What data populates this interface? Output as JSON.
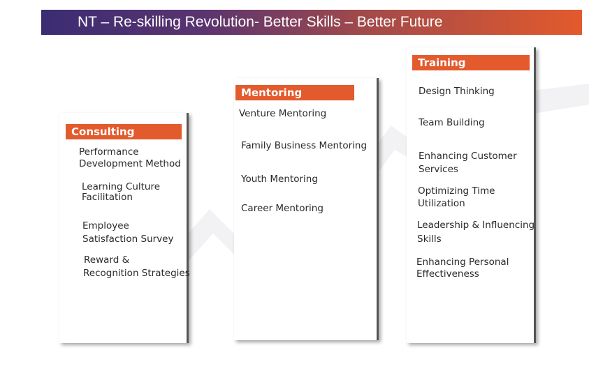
{
  "banner": {
    "title": "NT – Re-skilling Revolution- Better Skills – Better Future"
  },
  "colors": {
    "accent": "#e35a2c",
    "banner_start": "#3b2c72",
    "banner_end": "#e35a2c"
  },
  "consulting": {
    "title": "Consulting",
    "items": [
      {
        "line1": "Performance",
        "line2": "Development Method"
      },
      {
        "line1": "Learning Culture",
        "line2": "Facilitation"
      },
      {
        "line1": "Employee",
        "line2": "Satisfaction Survey"
      },
      {
        "line1": "Reward &",
        "line2": "Recognition Strategies"
      }
    ]
  },
  "mentoring": {
    "title": "Mentoring",
    "items": [
      "Venture Mentoring",
      "Family Business Mentoring",
      "Youth Mentoring",
      "Career Mentoring"
    ]
  },
  "training": {
    "title": "Training",
    "items": [
      {
        "line1": "Design Thinking",
        "line2": ""
      },
      {
        "line1": "Team Building",
        "line2": ""
      },
      {
        "line1": "Enhancing Customer",
        "line2": "Services"
      },
      {
        "line1": "Optimizing Time",
        "line2": "Utilization"
      },
      {
        "line1": "Leadership & Influencing",
        "line2": "Skills"
      },
      {
        "line1": "Enhancing Personal",
        "line2": "Effectiveness"
      }
    ]
  }
}
